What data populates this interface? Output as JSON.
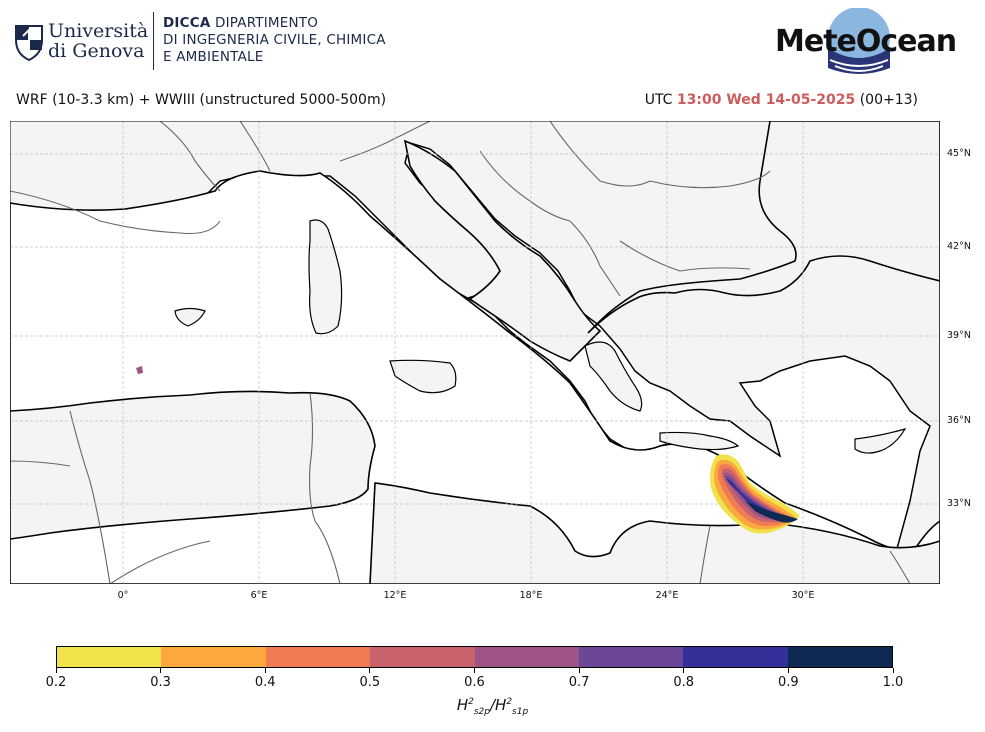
{
  "header": {
    "university_line1": "Università",
    "university_line2": "di Genova",
    "dicca_abbr": "DICCA",
    "dicca_line1_rest": "DIPARTIMENTO",
    "dicca_line2": "DI INGEGNERIA CIVILE, CHIMICA",
    "dicca_line3": "E AMBIENTALE",
    "brand": "MeteOcean"
  },
  "model_title": "WRF (10-3.3 km) + WWIII (unstructured 5000-500m)",
  "time": {
    "prefix": "UTC",
    "value": "13:00 Wed 14-05-2025",
    "lead": "(00+13)",
    "highlight_color": "#cd5c5c"
  },
  "map": {
    "lat_ticks": [
      "45°N",
      "42°N",
      "39°N",
      "36°N",
      "33°N"
    ],
    "lon_ticks": [
      "0°",
      "6°E",
      "12°E",
      "18°E",
      "24°E",
      "30°E"
    ],
    "land_color": "#f4f4f4",
    "sea_color": "#ffffff"
  },
  "colorbar": {
    "levels": [
      "0.2",
      "0.3",
      "0.4",
      "0.5",
      "0.6",
      "0.7",
      "0.8",
      "0.9",
      "1.0"
    ],
    "colors": [
      "#f0e24a",
      "#fba83e",
      "#ef7c52",
      "#c8636d",
      "#9e5487",
      "#6c4798",
      "#34309a",
      "#0e2a52"
    ],
    "label_main": "H",
    "label_sup1": "2",
    "label_sub1": "s2p",
    "label_sep": "/H",
    "label_sup2": "2",
    "label_sub2": "s1p"
  }
}
